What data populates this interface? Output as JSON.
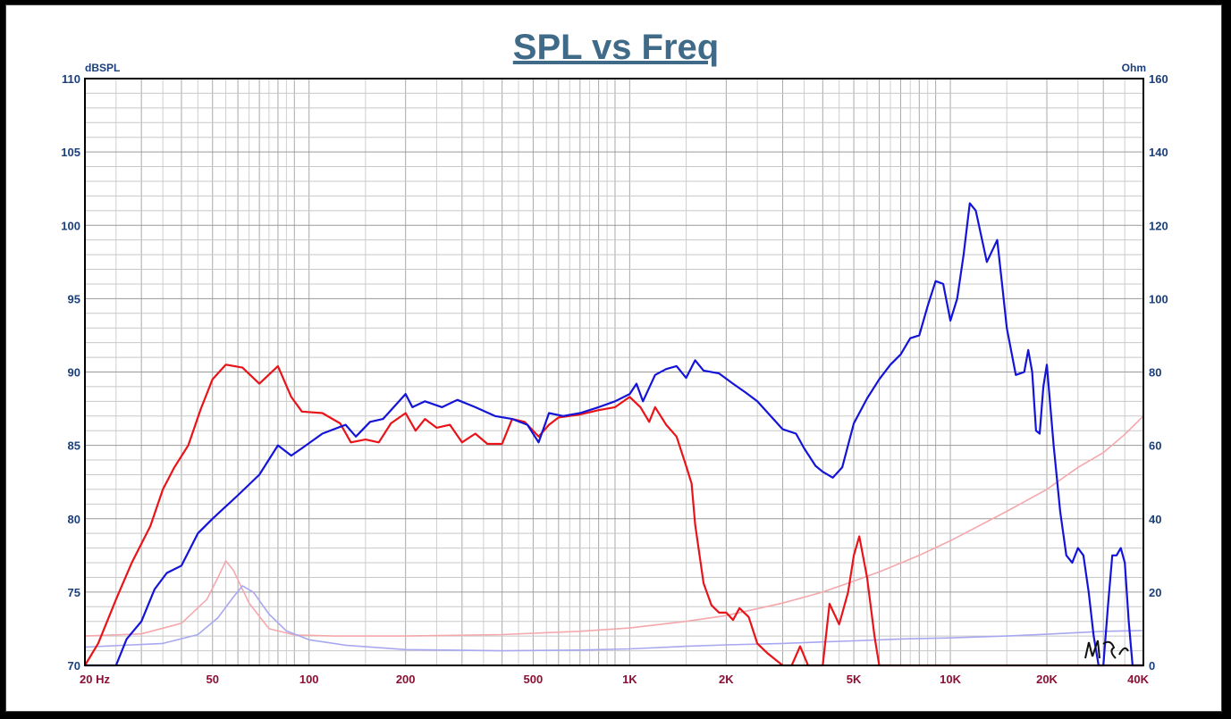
{
  "chart_data": {
    "type": "line",
    "title": "SPL vs Freq",
    "ylabel_left": "dBSPL",
    "ylabel_right": "Ohm",
    "x_scale": "log",
    "xlim": [
      20,
      40000
    ],
    "ylim_left": [
      70,
      110
    ],
    "ylim_right": [
      0,
      160
    ],
    "grid": true,
    "x_ticks": [
      {
        "value": 20,
        "label": "20  Hz"
      },
      {
        "value": 50,
        "label": "50"
      },
      {
        "value": 100,
        "label": "100"
      },
      {
        "value": 200,
        "label": "200"
      },
      {
        "value": 500,
        "label": "500"
      },
      {
        "value": 1000,
        "label": "1K"
      },
      {
        "value": 2000,
        "label": "2K"
      },
      {
        "value": 5000,
        "label": "5K"
      },
      {
        "value": 10000,
        "label": "10K"
      },
      {
        "value": 20000,
        "label": "20K"
      },
      {
        "value": 40000,
        "label": "40K"
      }
    ],
    "y_ticks_left": [
      70,
      75,
      80,
      85,
      90,
      95,
      100,
      105,
      110
    ],
    "y_ticks_right": [
      0,
      20,
      40,
      60,
      80,
      100,
      120,
      140,
      160
    ],
    "colors": {
      "red": "#e8141a",
      "blue": "#1414d8",
      "pink": "#f4a8ac",
      "lavender": "#a8a8f0"
    },
    "series": [
      {
        "color": "red",
        "axis": "left",
        "points": [
          [
            20,
            70
          ],
          [
            22,
            71.5
          ],
          [
            25,
            74.5
          ],
          [
            28,
            77
          ],
          [
            32,
            79.5
          ],
          [
            35,
            82
          ],
          [
            38,
            83.5
          ],
          [
            42,
            85
          ],
          [
            46,
            87.5
          ],
          [
            50,
            89.5
          ],
          [
            55,
            90.5
          ],
          [
            62,
            90.3
          ],
          [
            70,
            89.2
          ],
          [
            80,
            90.4
          ],
          [
            88,
            88.3
          ],
          [
            95,
            87.3
          ],
          [
            110,
            87.2
          ],
          [
            125,
            86.5
          ],
          [
            135,
            85.2
          ],
          [
            150,
            85.4
          ],
          [
            165,
            85.2
          ],
          [
            180,
            86.5
          ],
          [
            200,
            87.2
          ],
          [
            215,
            86
          ],
          [
            230,
            86.8
          ],
          [
            250,
            86.2
          ],
          [
            275,
            86.4
          ],
          [
            300,
            85.2
          ],
          [
            330,
            85.8
          ],
          [
            360,
            85.1
          ],
          [
            400,
            85.1
          ],
          [
            430,
            86.8
          ],
          [
            470,
            86.6
          ],
          [
            520,
            85.6
          ],
          [
            560,
            86.4
          ],
          [
            600,
            86.9
          ],
          [
            700,
            87.1
          ],
          [
            800,
            87.4
          ],
          [
            900,
            87.6
          ],
          [
            1000,
            88.3
          ],
          [
            1080,
            87.6
          ],
          [
            1150,
            86.6
          ],
          [
            1200,
            87.6
          ],
          [
            1300,
            86.4
          ],
          [
            1400,
            85.6
          ],
          [
            1500,
            83.6
          ],
          [
            1560,
            82.4
          ],
          [
            1600,
            79.6
          ],
          [
            1700,
            75.6
          ],
          [
            1800,
            74.1
          ],
          [
            1900,
            73.6
          ],
          [
            2000,
            73.6
          ],
          [
            2100,
            73.1
          ],
          [
            2200,
            73.9
          ],
          [
            2350,
            73.3
          ],
          [
            2500,
            71.5
          ],
          [
            2700,
            70.8
          ],
          [
            3000,
            70
          ],
          [
            3200,
            70
          ],
          [
            3400,
            71.3
          ],
          [
            3600,
            70
          ],
          [
            4000,
            70
          ],
          [
            4200,
            74.2
          ],
          [
            4500,
            72.8
          ],
          [
            4800,
            75
          ],
          [
            5000,
            77.5
          ],
          [
            5200,
            78.8
          ],
          [
            5500,
            76
          ],
          [
            5800,
            72
          ],
          [
            6000,
            70
          ],
          [
            8000,
            70
          ],
          [
            40000,
            70
          ]
        ]
      },
      {
        "color": "blue",
        "axis": "left",
        "points": [
          [
            20,
            70
          ],
          [
            25,
            70
          ],
          [
            27,
            71.8
          ],
          [
            30,
            73
          ],
          [
            33,
            75.2
          ],
          [
            36,
            76.3
          ],
          [
            40,
            76.8
          ],
          [
            45,
            79
          ],
          [
            50,
            80
          ],
          [
            60,
            81.6
          ],
          [
            70,
            83
          ],
          [
            80,
            85
          ],
          [
            88,
            84.3
          ],
          [
            95,
            84.8
          ],
          [
            110,
            85.8
          ],
          [
            130,
            86.4
          ],
          [
            140,
            85.6
          ],
          [
            155,
            86.6
          ],
          [
            170,
            86.8
          ],
          [
            200,
            88.5
          ],
          [
            210,
            87.6
          ],
          [
            230,
            88
          ],
          [
            260,
            87.6
          ],
          [
            290,
            88.1
          ],
          [
            330,
            87.6
          ],
          [
            380,
            87
          ],
          [
            430,
            86.8
          ],
          [
            480,
            86.4
          ],
          [
            520,
            85.2
          ],
          [
            560,
            87.2
          ],
          [
            620,
            87
          ],
          [
            700,
            87.2
          ],
          [
            800,
            87.6
          ],
          [
            900,
            88
          ],
          [
            1000,
            88.5
          ],
          [
            1050,
            89.2
          ],
          [
            1100,
            88
          ],
          [
            1200,
            89.8
          ],
          [
            1300,
            90.2
          ],
          [
            1400,
            90.4
          ],
          [
            1500,
            89.6
          ],
          [
            1600,
            90.8
          ],
          [
            1700,
            90.1
          ],
          [
            1900,
            89.9
          ],
          [
            2100,
            89.2
          ],
          [
            2300,
            88.6
          ],
          [
            2500,
            88
          ],
          [
            2700,
            87.2
          ],
          [
            3000,
            86.1
          ],
          [
            3300,
            85.8
          ],
          [
            3500,
            84.8
          ],
          [
            3800,
            83.6
          ],
          [
            4000,
            83.2
          ],
          [
            4300,
            82.8
          ],
          [
            4600,
            83.5
          ],
          [
            5000,
            86.5
          ],
          [
            5500,
            88.2
          ],
          [
            6000,
            89.5
          ],
          [
            6500,
            90.5
          ],
          [
            7000,
            91.2
          ],
          [
            7500,
            92.3
          ],
          [
            8000,
            92.5
          ],
          [
            8500,
            94.5
          ],
          [
            9000,
            96.2
          ],
          [
            9500,
            96
          ],
          [
            10000,
            93.5
          ],
          [
            10500,
            95
          ],
          [
            11000,
            98
          ],
          [
            11500,
            101.5
          ],
          [
            12000,
            101
          ],
          [
            13000,
            97.5
          ],
          [
            14000,
            99
          ],
          [
            14500,
            96
          ],
          [
            15000,
            93
          ],
          [
            16000,
            89.8
          ],
          [
            17000,
            90
          ],
          [
            17500,
            91.5
          ],
          [
            18000,
            90
          ],
          [
            18500,
            86
          ],
          [
            19000,
            85.8
          ],
          [
            19500,
            89
          ],
          [
            20000,
            90.5
          ],
          [
            21000,
            85
          ],
          [
            22000,
            80.5
          ],
          [
            23000,
            77.5
          ],
          [
            24000,
            77
          ],
          [
            25000,
            78
          ],
          [
            26000,
            77.5
          ],
          [
            27000,
            75
          ],
          [
            28000,
            72
          ],
          [
            29000,
            70
          ],
          [
            30000,
            70
          ],
          [
            31000,
            74
          ],
          [
            32000,
            77.5
          ],
          [
            33000,
            77.5
          ],
          [
            34000,
            78
          ],
          [
            35000,
            77
          ],
          [
            36000,
            73
          ],
          [
            37000,
            70
          ],
          [
            40000,
            70
          ]
        ]
      },
      {
        "color": "pink",
        "axis": "right",
        "points": [
          [
            20,
            8
          ],
          [
            30,
            8.6
          ],
          [
            40,
            11.5
          ],
          [
            48,
            18
          ],
          [
            52,
            24
          ],
          [
            55,
            28.5
          ],
          [
            58,
            26
          ],
          [
            65,
            17
          ],
          [
            75,
            10
          ],
          [
            90,
            8.3
          ],
          [
            120,
            8
          ],
          [
            200,
            8
          ],
          [
            400,
            8.4
          ],
          [
            700,
            9.3
          ],
          [
            1000,
            10.2
          ],
          [
            1500,
            12
          ],
          [
            2000,
            13.6
          ],
          [
            3000,
            17
          ],
          [
            4000,
            20
          ],
          [
            5000,
            23
          ],
          [
            6000,
            25.5
          ],
          [
            8000,
            30
          ],
          [
            10000,
            34
          ],
          [
            15000,
            42
          ],
          [
            20000,
            48
          ],
          [
            25000,
            54
          ],
          [
            30000,
            58
          ],
          [
            35000,
            63
          ],
          [
            40000,
            68
          ]
        ]
      },
      {
        "color": "lavender",
        "axis": "right",
        "points": [
          [
            20,
            5
          ],
          [
            35,
            6
          ],
          [
            45,
            8.4
          ],
          [
            52,
            13
          ],
          [
            58,
            18.6
          ],
          [
            62,
            21.7
          ],
          [
            67,
            20
          ],
          [
            75,
            14
          ],
          [
            85,
            9.4
          ],
          [
            100,
            7
          ],
          [
            130,
            5.5
          ],
          [
            200,
            4.3
          ],
          [
            400,
            4
          ],
          [
            700,
            4.2
          ],
          [
            1000,
            4.5
          ],
          [
            1500,
            5.2
          ],
          [
            2000,
            5.6
          ],
          [
            3000,
            6
          ],
          [
            4000,
            6.4
          ],
          [
            5000,
            6.7
          ],
          [
            7000,
            7.2
          ],
          [
            10000,
            7.5
          ],
          [
            15000,
            8
          ],
          [
            20000,
            8.5
          ],
          [
            30000,
            9.3
          ],
          [
            40000,
            9.5
          ]
        ]
      }
    ]
  }
}
